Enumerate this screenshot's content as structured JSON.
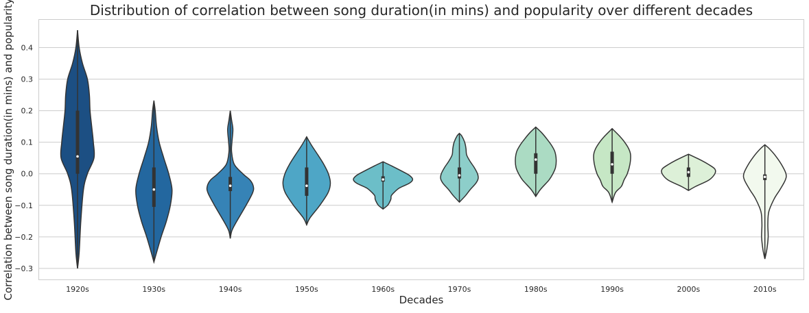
{
  "chart_data": {
    "type": "violin",
    "title": "Distribution of correlation between song duration(in mins) and popularity over different decades",
    "xlabel": "Decades",
    "ylabel": "Correlation between song duration(in mins) and popularity",
    "ylim": [
      -0.335,
      0.49
    ],
    "yticks": [
      -0.3,
      -0.2,
      -0.1,
      0.0,
      0.1,
      0.2,
      0.3,
      0.4
    ],
    "ytick_labels": [
      "−0.3",
      "−0.2",
      "−0.1",
      "0.0",
      "0.1",
      "0.2",
      "0.3",
      "0.4"
    ],
    "grid": "horizontal",
    "categories": [
      "1920s",
      "1930s",
      "1940s",
      "1950s",
      "1960s",
      "1970s",
      "1980s",
      "1990s",
      "2000s",
      "2010s"
    ],
    "colors": [
      "#1c4f83",
      "#23679f",
      "#3683b6",
      "#4ea6c6",
      "#6cbec8",
      "#8dceca",
      "#abdbc3",
      "#c6e7c5",
      "#ddf0d8",
      "#f2f9ee"
    ],
    "outline_color": "#333333",
    "violins": [
      {
        "category": "1920s",
        "min": -0.3,
        "max": 0.455,
        "q1": 0.0,
        "median": 0.055,
        "q3": 0.2,
        "profile": [
          [
            -0.3,
            0.0
          ],
          [
            -0.25,
            0.05
          ],
          [
            -0.15,
            0.1
          ],
          [
            -0.05,
            0.18
          ],
          [
            0.0,
            0.3
          ],
          [
            0.05,
            0.5
          ],
          [
            0.1,
            0.48
          ],
          [
            0.15,
            0.43
          ],
          [
            0.2,
            0.38
          ],
          [
            0.25,
            0.36
          ],
          [
            0.3,
            0.3
          ],
          [
            0.35,
            0.15
          ],
          [
            0.4,
            0.05
          ],
          [
            0.455,
            0.0
          ]
        ]
      },
      {
        "category": "1930s",
        "min": -0.28,
        "max": 0.232,
        "q1": -0.105,
        "median": -0.05,
        "q3": 0.02,
        "profile": [
          [
            -0.28,
            0.0
          ],
          [
            -0.25,
            0.08
          ],
          [
            -0.2,
            0.22
          ],
          [
            -0.15,
            0.38
          ],
          [
            -0.1,
            0.5
          ],
          [
            -0.05,
            0.55
          ],
          [
            0.0,
            0.45
          ],
          [
            0.05,
            0.3
          ],
          [
            0.1,
            0.16
          ],
          [
            0.15,
            0.08
          ],
          [
            0.2,
            0.04
          ],
          [
            0.232,
            0.0
          ]
        ]
      },
      {
        "category": "1940s",
        "min": -0.205,
        "max": 0.2,
        "q1": -0.055,
        "median": -0.038,
        "q3": -0.01,
        "profile": [
          [
            -0.205,
            0.0
          ],
          [
            -0.18,
            0.05
          ],
          [
            -0.15,
            0.2
          ],
          [
            -0.1,
            0.48
          ],
          [
            -0.06,
            0.68
          ],
          [
            -0.04,
            0.7
          ],
          [
            -0.02,
            0.6
          ],
          [
            0.0,
            0.38
          ],
          [
            0.03,
            0.12
          ],
          [
            0.07,
            0.04
          ],
          [
            0.1,
            0.05
          ],
          [
            0.14,
            0.08
          ],
          [
            0.17,
            0.04
          ],
          [
            0.2,
            0.0
          ]
        ]
      },
      {
        "category": "1950s",
        "min": -0.162,
        "max": 0.117,
        "q1": -0.07,
        "median": -0.038,
        "q3": 0.02,
        "profile": [
          [
            -0.162,
            0.0
          ],
          [
            -0.14,
            0.1
          ],
          [
            -0.1,
            0.4
          ],
          [
            -0.06,
            0.65
          ],
          [
            -0.03,
            0.72
          ],
          [
            0.0,
            0.66
          ],
          [
            0.03,
            0.52
          ],
          [
            0.06,
            0.34
          ],
          [
            0.09,
            0.15
          ],
          [
            0.117,
            0.0
          ]
        ]
      },
      {
        "category": "1960s",
        "min": -0.112,
        "max": 0.038,
        "q1": -0.025,
        "median": -0.018,
        "q3": -0.008,
        "profile": [
          [
            -0.112,
            0.0
          ],
          [
            -0.1,
            0.14
          ],
          [
            -0.09,
            0.2
          ],
          [
            -0.08,
            0.24
          ],
          [
            -0.07,
            0.25
          ],
          [
            -0.06,
            0.33
          ],
          [
            -0.045,
            0.5
          ],
          [
            -0.03,
            0.8
          ],
          [
            -0.018,
            0.9
          ],
          [
            -0.005,
            0.8
          ],
          [
            0.01,
            0.54
          ],
          [
            0.025,
            0.26
          ],
          [
            0.038,
            0.0
          ]
        ]
      },
      {
        "category": "1970s",
        "min": -0.09,
        "max": 0.128,
        "q1": -0.015,
        "median": -0.005,
        "q3": 0.02,
        "profile": [
          [
            -0.09,
            0.0
          ],
          [
            -0.07,
            0.18
          ],
          [
            -0.05,
            0.33
          ],
          [
            -0.03,
            0.5
          ],
          [
            -0.015,
            0.57
          ],
          [
            0.0,
            0.55
          ],
          [
            0.02,
            0.45
          ],
          [
            0.04,
            0.32
          ],
          [
            0.06,
            0.22
          ],
          [
            0.08,
            0.2
          ],
          [
            0.1,
            0.16
          ],
          [
            0.12,
            0.07
          ],
          [
            0.128,
            0.0
          ]
        ]
      },
      {
        "category": "1980s",
        "min": -0.072,
        "max": 0.148,
        "q1": 0.0,
        "median": 0.045,
        "q3": 0.065,
        "profile": [
          [
            -0.072,
            0.0
          ],
          [
            -0.05,
            0.14
          ],
          [
            -0.02,
            0.4
          ],
          [
            0.0,
            0.52
          ],
          [
            0.02,
            0.6
          ],
          [
            0.045,
            0.62
          ],
          [
            0.07,
            0.58
          ],
          [
            0.09,
            0.48
          ],
          [
            0.11,
            0.34
          ],
          [
            0.13,
            0.18
          ],
          [
            0.148,
            0.0
          ]
        ]
      },
      {
        "category": "1990s",
        "min": -0.09,
        "max": 0.143,
        "q1": 0.0,
        "median": 0.03,
        "q3": 0.07,
        "profile": [
          [
            -0.09,
            0.0
          ],
          [
            -0.06,
            0.1
          ],
          [
            -0.04,
            0.28
          ],
          [
            -0.02,
            0.36
          ],
          [
            0.0,
            0.46
          ],
          [
            0.03,
            0.54
          ],
          [
            0.06,
            0.56
          ],
          [
            0.08,
            0.5
          ],
          [
            0.1,
            0.38
          ],
          [
            0.12,
            0.22
          ],
          [
            0.143,
            0.0
          ]
        ]
      },
      {
        "category": "2000s",
        "min": -0.053,
        "max": 0.062,
        "q1": -0.01,
        "median": 0.005,
        "q3": 0.02,
        "profile": [
          [
            -0.053,
            0.0
          ],
          [
            -0.04,
            0.22
          ],
          [
            -0.02,
            0.62
          ],
          [
            0.0,
            0.8
          ],
          [
            0.015,
            0.8
          ],
          [
            0.03,
            0.6
          ],
          [
            0.045,
            0.34
          ],
          [
            0.062,
            0.0
          ]
        ]
      },
      {
        "category": "2010s",
        "min": -0.27,
        "max": 0.092,
        "q1": -0.02,
        "median": -0.01,
        "q3": -0.002,
        "profile": [
          [
            -0.27,
            0.0
          ],
          [
            -0.24,
            0.06
          ],
          [
            -0.2,
            0.1
          ],
          [
            -0.16,
            0.09
          ],
          [
            -0.12,
            0.12
          ],
          [
            -0.08,
            0.28
          ],
          [
            -0.05,
            0.46
          ],
          [
            -0.02,
            0.62
          ],
          [
            0.0,
            0.64
          ],
          [
            0.03,
            0.5
          ],
          [
            0.06,
            0.3
          ],
          [
            0.08,
            0.13
          ],
          [
            0.092,
            0.0
          ]
        ]
      }
    ]
  }
}
